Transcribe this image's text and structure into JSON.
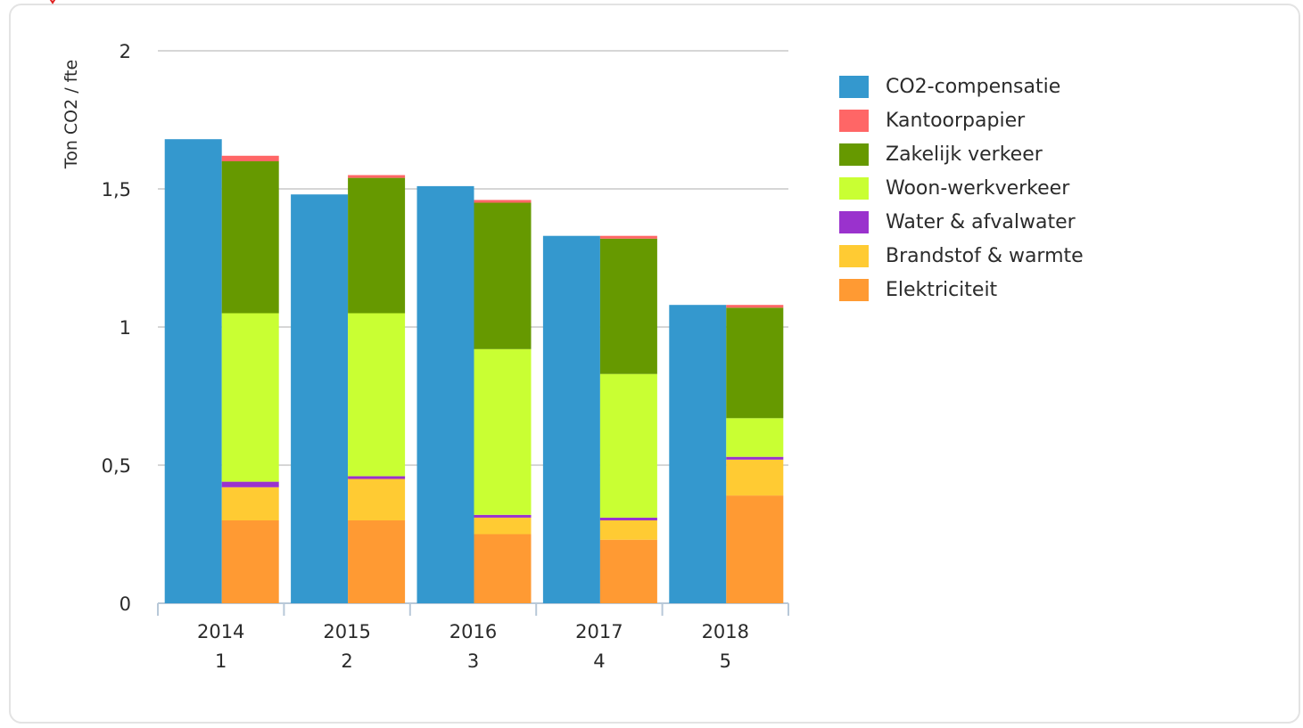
{
  "chart_data": {
    "type": "bar",
    "stacked": true,
    "ylabel": "Ton CO2 / fte",
    "ylim": [
      0,
      2
    ],
    "y_ticks": [
      "0",
      "0,5",
      "1",
      "1,5",
      "2"
    ],
    "categories": [
      {
        "year": "2014",
        "index": "1"
      },
      {
        "year": "2015",
        "index": "2"
      },
      {
        "year": "2016",
        "index": "3"
      },
      {
        "year": "2017",
        "index": "4"
      },
      {
        "year": "2018",
        "index": "5"
      }
    ],
    "compensation_series": {
      "name": "CO2-compensatie",
      "color": "#3498ce",
      "values": [
        1.68,
        1.48,
        1.51,
        1.33,
        1.08
      ]
    },
    "series": [
      {
        "name": "Elektriciteit",
        "color": "#ff9a33",
        "values": [
          0.3,
          0.3,
          0.25,
          0.23,
          0.39
        ]
      },
      {
        "name": "Brandstof & warmte",
        "color": "#ffcb33",
        "values": [
          0.12,
          0.15,
          0.06,
          0.07,
          0.13
        ]
      },
      {
        "name": "Water & afvalwater",
        "color": "#9a32cd",
        "values": [
          0.02,
          0.01,
          0.01,
          0.01,
          0.01
        ]
      },
      {
        "name": "Woon-werkverkeer",
        "color": "#c9ff33",
        "values": [
          0.61,
          0.59,
          0.6,
          0.52,
          0.14
        ]
      },
      {
        "name": "Zakelijk verkeer",
        "color": "#669900",
        "values": [
          0.55,
          0.49,
          0.53,
          0.49,
          0.4
        ]
      },
      {
        "name": "Kantoorpapier",
        "color": "#ff6666",
        "values": [
          0.02,
          0.01,
          0.01,
          0.01,
          0.01
        ]
      }
    ],
    "legend_order": [
      "CO2-compensatie",
      "Kantoorpapier",
      "Zakelijk verkeer",
      "Woon-werkverkeer",
      "Water & afvalwater",
      "Brandstof & warmte",
      "Elektriciteit"
    ],
    "legend_position": "right",
    "grid": true
  },
  "colors": {
    "gridline": "#c8c8c8",
    "axis": "#b8c8d8",
    "text": "#2b2b2b",
    "accent_mark": "#e02020"
  }
}
